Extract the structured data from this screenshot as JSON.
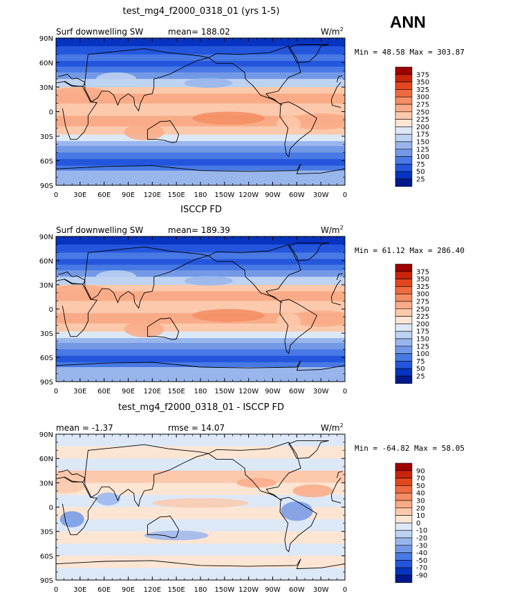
{
  "season": "ANN",
  "units_base": "W/m",
  "units_exp": "2",
  "lat_ticks": [
    "90N",
    "60N",
    "30N",
    "0",
    "30S",
    "60S",
    "90S"
  ],
  "lon_ticks": [
    "0",
    "30E",
    "60E",
    "90E",
    "120E",
    "150E",
    "180",
    "150W",
    "120W",
    "90W",
    "60W",
    "30W",
    "0"
  ],
  "chart_data": [
    {
      "type": "heatmap",
      "title": "test_mg4_f2000_0318_01 (yrs 1-5)",
      "variable": "Surf downwelling SW",
      "stat1_label": "mean=",
      "stat1_value": "188.02",
      "stat2_label": "",
      "stat2_value": "",
      "min_max_text": "Min =  48.58 Max = 303.87",
      "min": 48.58,
      "max": 303.87,
      "mean": 188.02,
      "colorbar_labels": [
        "375",
        "350",
        "325",
        "300",
        "275",
        "250",
        "225",
        "200",
        "175",
        "150",
        "125",
        "100",
        "75",
        "50",
        "25"
      ],
      "colorbar_colors": [
        "#9e0000",
        "#c8250a",
        "#e3461f",
        "#ef6a40",
        "#f58d63",
        "#f9ab87",
        "#fcc9ac",
        "#fde5d3",
        "#dde8f7",
        "#bed2f2",
        "#99b6ec",
        "#7399e6",
        "#4879e4",
        "#2456dd",
        "#0633c0",
        "#001a8c"
      ],
      "xlim": [
        0,
        360
      ],
      "ylim": [
        -90,
        90
      ]
    },
    {
      "type": "heatmap",
      "title": "ISCCP FD",
      "variable": "Surf downwelling SW",
      "stat1_label": "mean=",
      "stat1_value": "189.39",
      "stat2_label": "",
      "stat2_value": "",
      "min_max_text": "Min =  61.12 Max = 286.40",
      "min": 61.12,
      "max": 286.4,
      "mean": 189.39,
      "colorbar_labels": [
        "375",
        "350",
        "325",
        "300",
        "275",
        "250",
        "225",
        "200",
        "175",
        "150",
        "125",
        "100",
        "75",
        "50",
        "25"
      ],
      "colorbar_colors": [
        "#9e0000",
        "#c8250a",
        "#e3461f",
        "#ef6a40",
        "#f58d63",
        "#f9ab87",
        "#fcc9ac",
        "#fde5d3",
        "#dde8f7",
        "#bed2f2",
        "#99b6ec",
        "#7399e6",
        "#4879e4",
        "#2456dd",
        "#0633c0",
        "#001a8c"
      ],
      "xlim": [
        0,
        360
      ],
      "ylim": [
        -90,
        90
      ]
    },
    {
      "type": "heatmap",
      "title": "test_mg4_f2000_0318_01 - ISCCP FD",
      "variable": "",
      "stat1_label": "mean =",
      "stat1_value": "-1.37",
      "stat2_label": "rmse =",
      "stat2_value": "14.07",
      "min_max_text": "Min = -64.82 Max =  58.05",
      "min": -64.82,
      "max": 58.05,
      "mean": -1.37,
      "rmse": 14.07,
      "colorbar_labels": [
        "90",
        "70",
        "50",
        "40",
        "30",
        "20",
        "10",
        "0",
        "-10",
        "-20",
        "-30",
        "-40",
        "-50",
        "-70",
        "-90"
      ],
      "colorbar_colors": [
        "#9e0000",
        "#c8250a",
        "#e3461f",
        "#ef6a40",
        "#f58d63",
        "#f9ab87",
        "#fcc9ac",
        "#fde5d3",
        "#dde8f7",
        "#bed2f2",
        "#99b6ec",
        "#7399e6",
        "#4879e4",
        "#2456dd",
        "#0633c0",
        "#001a8c"
      ],
      "xlim": [
        0,
        360
      ],
      "ylim": [
        -90,
        90
      ]
    }
  ]
}
